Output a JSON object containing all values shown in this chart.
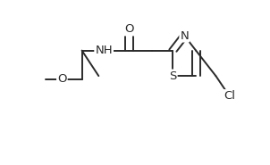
{
  "bg_color": "#ffffff",
  "line_color": "#2a2a2a",
  "text_color": "#2a2a2a",
  "figsize": [
    3.02,
    1.85
  ],
  "dpi": 100,
  "lw": 1.4,
  "atom_labels": [
    {
      "key": "O_carb",
      "text": "O",
      "fontsize": 9.5
    },
    {
      "key": "NH",
      "text": "NH",
      "fontsize": 9.5
    },
    {
      "key": "N_thiaz",
      "text": "N",
      "fontsize": 9.5
    },
    {
      "key": "S_thiaz",
      "text": "S",
      "fontsize": 9.5
    },
    {
      "key": "O_ether",
      "text": "O",
      "fontsize": 9.5
    },
    {
      "key": "Cl_atom",
      "text": "Cl",
      "fontsize": 9.5
    }
  ]
}
